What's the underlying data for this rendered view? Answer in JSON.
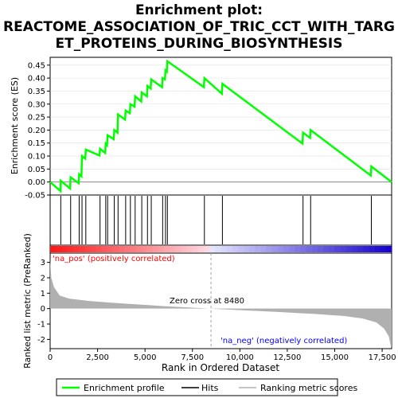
{
  "title_lines": [
    "Enrichment plot:",
    "REACTOME_ASSOCIATION_OF_TRIC_CCT_WITH_TARG",
    "ET_PROTEINS_DURING_BIOSYNTHESIS"
  ],
  "colors": {
    "es_line": "#00ff00",
    "hit": "#000000",
    "metric_fill": "#b0b0b0",
    "pos_label": "#ff0000",
    "neg_label": "#0000ff",
    "zero_line": "#a0a0a0",
    "grid": "#e0e0e0"
  },
  "chart_data": [
    {
      "type": "line",
      "name": "enrichment-profile",
      "ylabel": "Enrichment score (ES)",
      "xlim": [
        0,
        18000
      ],
      "ylim": [
        -0.05,
        0.48
      ],
      "yticks": [
        "-0.05",
        "0.00",
        "0.05",
        "0.10",
        "0.15",
        "0.20",
        "0.25",
        "0.30",
        "0.35",
        "0.40",
        "0.45"
      ],
      "ytick_values": [
        -0.05,
        0,
        0.05,
        0.1,
        0.15,
        0.2,
        0.25,
        0.3,
        0.35,
        0.4,
        0.45
      ],
      "points": [
        [
          0,
          0
        ],
        [
          550,
          -0.035
        ],
        [
          560,
          0.005
        ],
        [
          1050,
          -0.025
        ],
        [
          1080,
          0.018
        ],
        [
          1500,
          -0.005
        ],
        [
          1530,
          0.03
        ],
        [
          1650,
          0.022
        ],
        [
          1680,
          0.1
        ],
        [
          1850,
          0.09
        ],
        [
          1880,
          0.125
        ],
        [
          2600,
          0.102
        ],
        [
          2630,
          0.128
        ],
        [
          2900,
          0.112
        ],
        [
          2930,
          0.148
        ],
        [
          3000,
          0.142
        ],
        [
          3030,
          0.18
        ],
        [
          3350,
          0.165
        ],
        [
          3380,
          0.2
        ],
        [
          3550,
          0.19
        ],
        [
          3580,
          0.26
        ],
        [
          3950,
          0.24
        ],
        [
          3980,
          0.275
        ],
        [
          4200,
          0.265
        ],
        [
          4230,
          0.3
        ],
        [
          4450,
          0.29
        ],
        [
          4480,
          0.33
        ],
        [
          4800,
          0.31
        ],
        [
          4830,
          0.345
        ],
        [
          5100,
          0.33
        ],
        [
          5130,
          0.37
        ],
        [
          5300,
          0.36
        ],
        [
          5330,
          0.395
        ],
        [
          5900,
          0.365
        ],
        [
          5930,
          0.4
        ],
        [
          6050,
          0.395
        ],
        [
          6080,
          0.43
        ],
        [
          6150,
          0.425
        ],
        [
          6180,
          0.465
        ],
        [
          8100,
          0.365
        ],
        [
          8130,
          0.4
        ],
        [
          9050,
          0.34
        ],
        [
          9080,
          0.378
        ],
        [
          13300,
          0.148
        ],
        [
          13330,
          0.19
        ],
        [
          13700,
          0.17
        ],
        [
          13730,
          0.2
        ],
        [
          16900,
          0.025
        ],
        [
          16930,
          0.06
        ],
        [
          18000,
          0
        ]
      ]
    },
    {
      "type": "scatter",
      "name": "hits",
      "x": [
        560,
        1080,
        1530,
        1680,
        1880,
        2630,
        2930,
        3030,
        3380,
        3580,
        3980,
        4230,
        4480,
        4830,
        5130,
        5330,
        5930,
        6080,
        6180,
        8130,
        9080,
        13330,
        13730,
        16930
      ]
    },
    {
      "type": "area",
      "name": "ranking-metric",
      "xlabel": "Rank in Ordered Dataset",
      "ylabel": "Ranked list metric (PreRanked)",
      "xlim": [
        0,
        18000
      ],
      "ylim": [
        -2.6,
        3.6
      ],
      "xticks": [
        "0",
        "2,500",
        "5,000",
        "7,500",
        "10,000",
        "12,500",
        "15,000",
        "17,500"
      ],
      "xtick_values": [
        0,
        2500,
        5000,
        7500,
        10000,
        12500,
        15000,
        17500
      ],
      "yticks": [
        "-2",
        "-1",
        "0",
        "1",
        "2",
        "3"
      ],
      "ytick_values": [
        -2,
        -1,
        0,
        1,
        2,
        3
      ],
      "points": [
        [
          0,
          3.2
        ],
        [
          60,
          2.0
        ],
        [
          200,
          1.4
        ],
        [
          500,
          0.85
        ],
        [
          1000,
          0.65
        ],
        [
          2000,
          0.5
        ],
        [
          3000,
          0.4
        ],
        [
          4000,
          0.32
        ],
        [
          5000,
          0.24
        ],
        [
          6000,
          0.16
        ],
        [
          7000,
          0.09
        ],
        [
          8480,
          0.0
        ],
        [
          10000,
          -0.1
        ],
        [
          12000,
          -0.22
        ],
        [
          14000,
          -0.35
        ],
        [
          15500,
          -0.48
        ],
        [
          16500,
          -0.65
        ],
        [
          17200,
          -0.9
        ],
        [
          17600,
          -1.3
        ],
        [
          17850,
          -1.8
        ],
        [
          17950,
          -2.4
        ],
        [
          18000,
          -2.5
        ]
      ],
      "annotations": {
        "pos": "'na_pos' (positively correlated)",
        "neg": "'na_neg' (negatively correlated)",
        "zero_cross": "Zero cross at 8480",
        "zero_cross_value": 8480
      }
    }
  ],
  "legend": {
    "items": [
      {
        "label": "Enrichment profile",
        "color": "#00ff00"
      },
      {
        "label": "Hits",
        "color": "#000000"
      },
      {
        "label": "Ranking metric scores",
        "color": "#b0b0b0"
      }
    ]
  }
}
